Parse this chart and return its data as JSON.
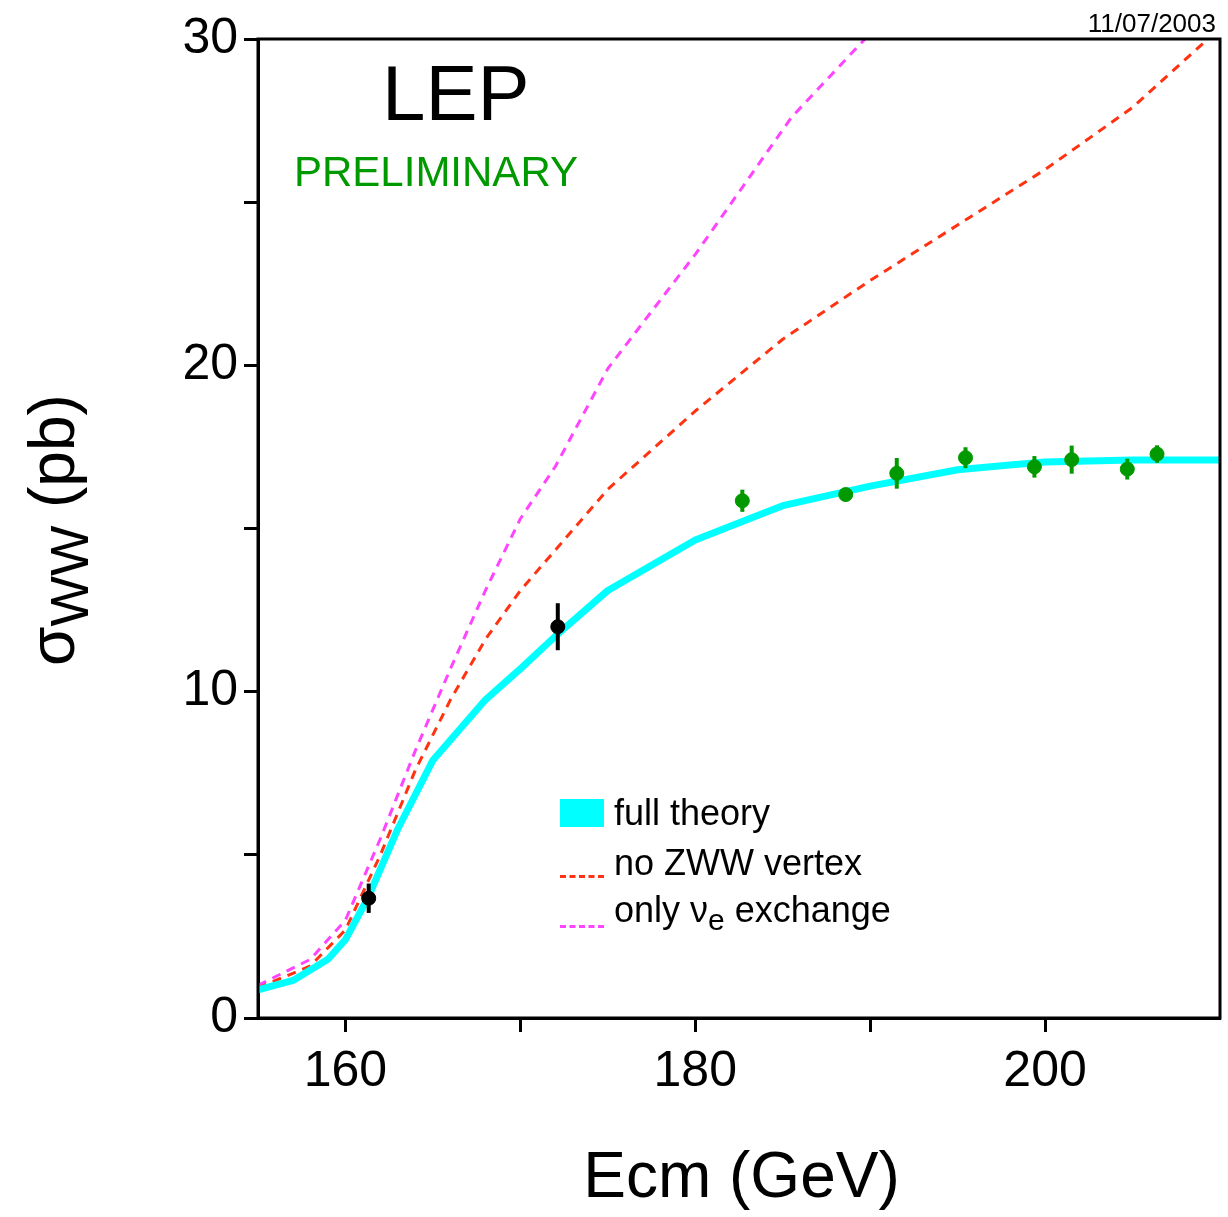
{
  "chart_data": {
    "type": "line",
    "title": "LEP",
    "subtitle": "PRELIMINARY",
    "xlabel": "Ecm (GeV)",
    "ylabel": "σ$_{WW}$ (pb)",
    "annotations": [
      "11/07/2003"
    ],
    "xlim": [
      155,
      210
    ],
    "xticks": [
      160,
      {
        "value": 170,
        "label": null
      },
      180,
      {
        "value": 190,
        "label": null
      },
      200
    ],
    "ylim": [
      0,
      30
    ],
    "yticks": [
      0,
      {
        "value": 5,
        "label": null
      },
      10,
      {
        "value": 15,
        "label": null
      },
      20,
      {
        "value": 25,
        "label": null
      },
      30
    ],
    "grid": false,
    "legend": "bottom",
    "series": [
      {
        "name": "full theory",
        "type": "line",
        "color": "#00ffff",
        "line_style": "solid",
        "marker": "none",
        "x": [
          155,
          157,
          159,
          160,
          161.3,
          163,
          165,
          168,
          170,
          172,
          175,
          180,
          185,
          190,
          195,
          200,
          205,
          210
        ],
        "values": [
          0.86,
          1.15,
          1.8,
          2.4,
          3.7,
          5.8,
          7.9,
          9.75,
          10.7,
          11.7,
          13.1,
          14.65,
          15.7,
          16.3,
          16.8,
          17.04,
          17.1,
          17.1
        ]
      },
      {
        "name": "no ZWW vertex",
        "type": "line",
        "color": "#ff3311",
        "line_style": "dashed",
        "marker": "none",
        "x": [
          155,
          158,
          160,
          162,
          164,
          166,
          168,
          170,
          175,
          180,
          185,
          190,
          195,
          200,
          205,
          209.3
        ],
        "values": [
          0.92,
          1.6,
          2.7,
          5.0,
          7.6,
          9.75,
          11.6,
          13.1,
          16.2,
          18.6,
          20.8,
          22.6,
          24.3,
          26.0,
          27.9,
          30
        ]
      },
      {
        "name": "only ν$_{e}$ exchange",
        "type": "line",
        "color": "#ff44ff",
        "line_style": "dashed",
        "marker": "none",
        "x": [
          155,
          158,
          160,
          162,
          164,
          166,
          168,
          170,
          172,
          175,
          180,
          185.5,
          189.7
        ],
        "values": [
          1.0,
          1.8,
          3.0,
          5.5,
          8.2,
          10.7,
          13.1,
          15.3,
          16.9,
          19.9,
          23.4,
          27.6,
          30
        ]
      },
      {
        "type": "scatter",
        "color": "#000000",
        "marker": "circle",
        "x": [
          161.33,
          172.14
        ],
        "values": [
          3.67,
          11.99
        ],
        "errors": [
          0.45,
          0.72
        ]
      },
      {
        "type": "scatter",
        "color": "#009900",
        "marker": "circle",
        "x": [
          182.69,
          188.6,
          191.52,
          195.45,
          199.39,
          201.52,
          204.7,
          206.4
        ],
        "values": [
          15.85,
          16.04,
          16.69,
          17.17,
          16.89,
          17.11,
          16.82,
          17.28
        ],
        "errors": [
          0.34,
          null,
          0.47,
          0.32,
          0.33,
          0.43,
          0.32,
          0.27
        ]
      }
    ]
  }
}
